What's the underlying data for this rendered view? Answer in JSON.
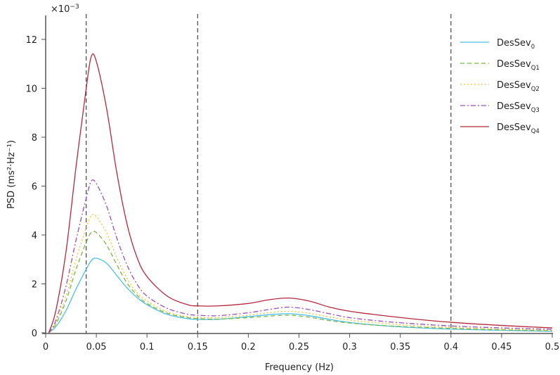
{
  "chart_data": {
    "type": "line",
    "title": "",
    "xlabel": "Frequency (Hz)",
    "ylabel": "PSD (ms²·Hz⁻¹)",
    "y_multiplier": "×10⁻³",
    "y_multiplier_base": "×10",
    "y_multiplier_exp": "−3",
    "xlim": [
      0,
      0.5
    ],
    "ylim": [
      0,
      13
    ],
    "grid": false,
    "legend_position": "upper right",
    "x_ticks": [
      "0",
      "0.05",
      "0.1",
      "0.15",
      "0.2",
      "0.25",
      "0.3",
      "0.35",
      "0.4",
      "0.45",
      "0.5"
    ],
    "y_ticks": [
      "0",
      "2",
      "4",
      "6",
      "8",
      "10",
      "12"
    ],
    "vertical_lines": [
      0.04,
      0.15,
      0.4
    ],
    "x": [
      0.003,
      0.01,
      0.02,
      0.03,
      0.04,
      0.045,
      0.05,
      0.06,
      0.07,
      0.08,
      0.09,
      0.1,
      0.12,
      0.14,
      0.15,
      0.17,
      0.2,
      0.22,
      0.24,
      0.26,
      0.28,
      0.3,
      0.33,
      0.36,
      0.4,
      0.45,
      0.5
    ],
    "series": [
      {
        "name": "DesSev",
        "sub": "0",
        "color": "#4dbfe8",
        "dash": "",
        "values": [
          0.0,
          0.25,
          0.9,
          1.8,
          2.6,
          2.95,
          3.05,
          2.85,
          2.35,
          1.85,
          1.45,
          1.15,
          0.75,
          0.58,
          0.55,
          0.55,
          0.66,
          0.74,
          0.78,
          0.7,
          0.55,
          0.42,
          0.3,
          0.22,
          0.15,
          0.1,
          0.06
        ]
      },
      {
        "name": "DesSev",
        "sub": "Q1",
        "color": "#77b843",
        "dash": "6,4",
        "values": [
          0.0,
          0.35,
          1.3,
          2.6,
          3.7,
          4.1,
          4.1,
          3.6,
          2.8,
          2.05,
          1.55,
          1.2,
          0.8,
          0.62,
          0.58,
          0.56,
          0.62,
          0.68,
          0.72,
          0.64,
          0.5,
          0.4,
          0.3,
          0.24,
          0.18,
          0.12,
          0.08
        ]
      },
      {
        "name": "DesSev",
        "sub": "Q2",
        "color": "#f2c033",
        "dash": "2,3",
        "values": [
          0.0,
          0.4,
          1.5,
          3.0,
          4.3,
          4.8,
          4.75,
          4.1,
          3.1,
          2.25,
          1.65,
          1.3,
          0.85,
          0.66,
          0.63,
          0.62,
          0.72,
          0.82,
          0.88,
          0.8,
          0.65,
          0.52,
          0.4,
          0.3,
          0.22,
          0.15,
          0.1
        ]
      },
      {
        "name": "DesSev",
        "sub": "Q3",
        "color": "#9a4fbf",
        "dash": "7,3,2,3",
        "values": [
          0.0,
          0.5,
          1.9,
          3.8,
          5.5,
          6.2,
          6.1,
          5.2,
          3.9,
          2.8,
          2.0,
          1.5,
          1.0,
          0.76,
          0.72,
          0.7,
          0.82,
          0.95,
          1.05,
          0.95,
          0.78,
          0.62,
          0.48,
          0.38,
          0.28,
          0.2,
          0.14
        ]
      },
      {
        "name": "DesSev",
        "sub": "Q4",
        "color": "#b5283c",
        "dash": "",
        "values": [
          0.0,
          0.9,
          3.3,
          6.8,
          10.0,
          11.3,
          11.1,
          9.2,
          6.6,
          4.5,
          3.1,
          2.3,
          1.5,
          1.15,
          1.1,
          1.1,
          1.2,
          1.35,
          1.42,
          1.3,
          1.05,
          0.88,
          0.72,
          0.58,
          0.43,
          0.3,
          0.2
        ]
      }
    ]
  }
}
